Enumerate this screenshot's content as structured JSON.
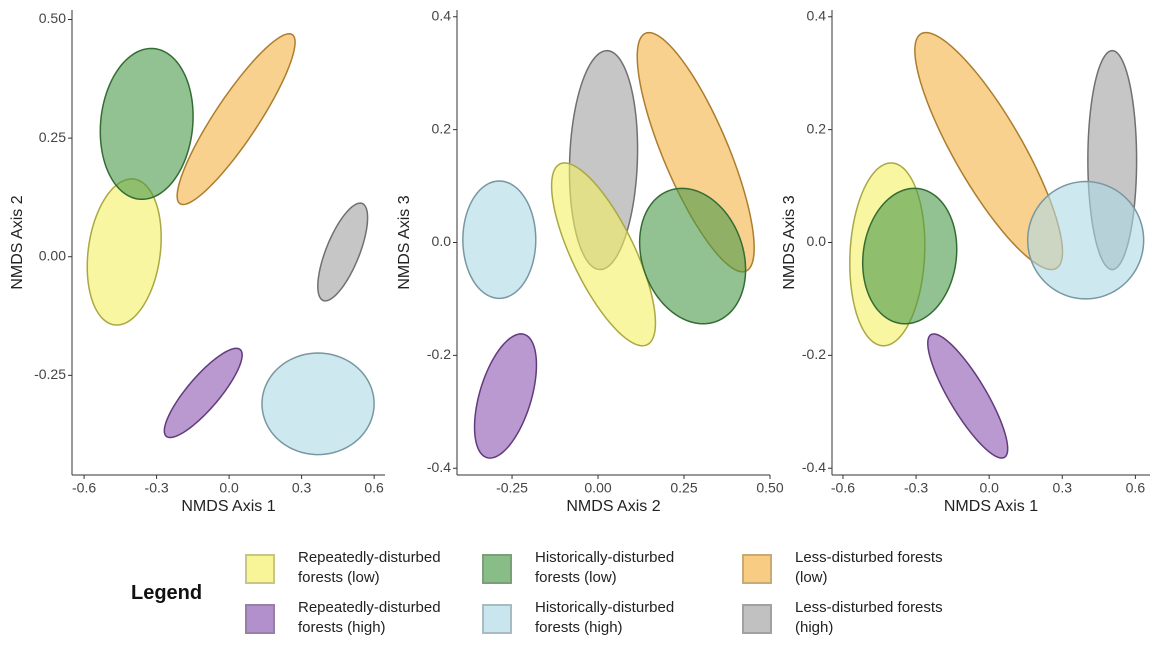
{
  "chart_data": [
    {
      "type": "ellipse",
      "x_label": "NMDS Axis 1",
      "y_label": "NMDS Axis 2",
      "xlim": [
        -0.65,
        0.645
      ],
      "ylim": [
        -0.46,
        0.52
      ],
      "xticks": [
        -0.6,
        -0.3,
        {
          "value": 0,
          "label": "0.0"
        },
        0.3,
        0.6
      ],
      "yticks": [
        -0.25,
        {
          "value": 0,
          "label": "0.00"
        },
        0.25,
        {
          "value": 0.5,
          "label": "0.50"
        }
      ],
      "series": [
        {
          "color": "#f4f060",
          "cx": -0.434,
          "cy": 0.01,
          "x_half": 0.153,
          "y_half": 0.154,
          "corr": 0.2
        },
        {
          "color": "#4a9a4a",
          "cx": -0.341,
          "cy": 0.28,
          "x_half": 0.192,
          "y_half": 0.159,
          "corr": 0.1
        },
        {
          "color": "#f5b342",
          "cx": 0.029,
          "cy": 0.29,
          "x_half": 0.244,
          "y_half": 0.18,
          "corr": 0.9
        },
        {
          "color": "#a0a0a0",
          "cx": 0.47,
          "cy": 0.01,
          "x_half": 0.103,
          "y_half": 0.103,
          "corr": 0.7
        },
        {
          "color": "#8a55b0",
          "cx": -0.107,
          "cy": -0.287,
          "x_half": 0.161,
          "y_half": 0.094,
          "corr": 0.85
        },
        {
          "color": "#add8e6",
          "cx": 0.368,
          "cy": -0.31,
          "x_half": 0.232,
          "y_half": 0.107,
          "corr": 0
        }
      ]
    },
    {
      "type": "ellipse",
      "x_label": "NMDS Axis 2",
      "y_label": "NMDS Axis 3",
      "xlim": [
        -0.41,
        0.5
      ],
      "ylim": [
        -0.412,
        0.412
      ],
      "xticks": [
        -0.25,
        {
          "value": 0,
          "label": "0.00"
        },
        0.25,
        {
          "value": 0.5,
          "label": "0.50"
        }
      ],
      "yticks": [
        -0.4,
        -0.2,
        {
          "value": 0,
          "label": "0.0"
        },
        0.2,
        0.4
      ],
      "series": [
        {
          "color": "#add8e6",
          "cx": -0.287,
          "cy": 0.005,
          "x_half": 0.106,
          "y_half": 0.104,
          "corr": 0
        },
        {
          "color": "#8a55b0",
          "cx": -0.269,
          "cy": -0.272,
          "x_half": 0.09,
          "y_half": 0.11,
          "corr": 0.5
        },
        {
          "color": "#a0a0a0",
          "cx": 0.016,
          "cy": 0.146,
          "x_half": 0.099,
          "y_half": 0.194,
          "corr": 0.1
        },
        {
          "color": "#f5b342",
          "cx": 0.284,
          "cy": 0.16,
          "x_half": 0.17,
          "y_half": 0.212,
          "corr": -0.8
        },
        {
          "color": "#f4f060",
          "cx": 0.016,
          "cy": -0.021,
          "x_half": 0.151,
          "y_half": 0.162,
          "corr": -0.75
        },
        {
          "color": "#4a9a4a",
          "cx": 0.275,
          "cy": -0.024,
          "x_half": 0.154,
          "y_half": 0.12,
          "corr": -0.2
        }
      ]
    },
    {
      "type": "ellipse",
      "x_label": "NMDS Axis 1",
      "y_label": "NMDS Axis 3",
      "xlim": [
        -0.645,
        0.66
      ],
      "ylim": [
        -0.412,
        0.412
      ],
      "xticks": [
        -0.6,
        -0.3,
        {
          "value": 0,
          "label": "0.0"
        },
        0.3,
        0.6
      ],
      "yticks": [
        -0.4,
        -0.2,
        {
          "value": 0,
          "label": "0.0"
        },
        0.2,
        0.4
      ],
      "series": [
        {
          "color": "#f4f060",
          "cx": -0.418,
          "cy": -0.021,
          "x_half": 0.154,
          "y_half": 0.162,
          "corr": 0.1
        },
        {
          "color": "#4a9a4a",
          "cx": -0.326,
          "cy": -0.024,
          "x_half": 0.193,
          "y_half": 0.12,
          "corr": 0.1
        },
        {
          "color": "#f5b342",
          "cx": -0.002,
          "cy": 0.162,
          "x_half": 0.303,
          "y_half": 0.21,
          "corr": -0.85
        },
        {
          "color": "#a0a0a0",
          "cx": 0.505,
          "cy": 0.146,
          "x_half": 0.1,
          "y_half": 0.194,
          "corr": 0
        },
        {
          "color": "#add8e6",
          "cx": 0.396,
          "cy": 0.004,
          "x_half": 0.238,
          "y_half": 0.104,
          "corr": 0
        },
        {
          "color": "#8a55b0",
          "cx": -0.088,
          "cy": -0.272,
          "x_half": 0.164,
          "y_half": 0.11,
          "corr": -0.85
        }
      ]
    }
  ],
  "legend": {
    "title": "Legend",
    "items": [
      {
        "label": "Repeatedly-disturbed forests (low)",
        "color": "#f4f060"
      },
      {
        "label": "Repeatedly-disturbed forests (high)",
        "color": "#8a55b0"
      },
      {
        "label": "Historically-disturbed forests (low)",
        "color": "#4a9a4a"
      },
      {
        "label": "Historically-disturbed forests (high)",
        "color": "#add8e6"
      },
      {
        "label": "Less-disturbed forests (low)",
        "color": "#f5b342"
      },
      {
        "label": "Less-disturbed forests (high)",
        "color": "#a0a0a0"
      }
    ]
  }
}
